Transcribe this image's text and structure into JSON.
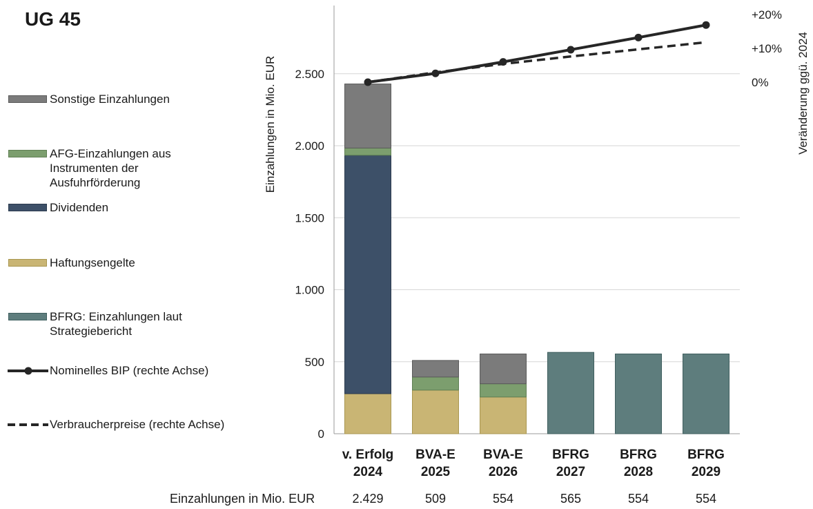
{
  "title": "UG 45",
  "legend": [
    {
      "label": "Sonstige Einzahlungen",
      "type": "rect",
      "fill": "#7b7b7b",
      "stroke": "#5a5a5a"
    },
    {
      "label": "AFG-Einzahlungen aus Instrumenten der Ausfuhrförderung",
      "type": "rect",
      "fill": "#7c9e6e",
      "stroke": "#5f7f53"
    },
    {
      "label": "Dividenden",
      "type": "rect",
      "fill": "#3d5068",
      "stroke": "#2b3a4e"
    },
    {
      "label": "Haftungsengelte",
      "type": "rect",
      "fill": "#c9b574",
      "stroke": "#a8964f"
    },
    {
      "label": "BFRG: Einzahlungen laut Strategiebericht",
      "type": "rect",
      "fill": "#5e7d7d",
      "stroke": "#3f5e5e"
    },
    {
      "label": "Nominelles BIP (rechte Achse)",
      "type": "line-marker"
    },
    {
      "label": "Verbraucherpreise (rechte Achse)",
      "type": "dashed"
    }
  ],
  "chart_data": {
    "type": "bar",
    "stacked": true,
    "categories": [
      {
        "line1": "v. Erfolg",
        "line2": "2024"
      },
      {
        "line1": "BVA-E",
        "line2": "2025"
      },
      {
        "line1": "BVA-E",
        "line2": "2026"
      },
      {
        "line1": "BFRG",
        "line2": "2027"
      },
      {
        "line1": "BFRG",
        "line2": "2028"
      },
      {
        "line1": "BFRG",
        "line2": "2029"
      }
    ],
    "series": [
      {
        "name": "Haftungsengelte",
        "color": "#c9b574",
        "values": [
          278,
          303,
          255,
          0,
          0,
          0
        ]
      },
      {
        "name": "Dividenden",
        "color": "#3d5068",
        "values": [
          1656,
          0,
          0,
          0,
          0,
          0
        ]
      },
      {
        "name": "AFG-Einzahlungen aus Instrumenten der Ausfuhrförderung",
        "color": "#7c9e6e",
        "values": [
          50,
          91,
          92,
          0,
          0,
          0
        ]
      },
      {
        "name": "Sonstige Einzahlungen",
        "color": "#7b7b7b",
        "values": [
          445,
          115,
          207,
          0,
          0,
          0
        ]
      },
      {
        "name": "BFRG: Einzahlungen laut Strategiebericht",
        "color": "#5e7d7d",
        "values": [
          0,
          0,
          0,
          565,
          554,
          554
        ]
      }
    ],
    "lines": [
      {
        "name": "Nominelles BIP (rechte Achse)",
        "style": "solid-marker",
        "values": [
          0,
          2.6,
          6.0,
          9.6,
          13.2,
          16.9
        ]
      },
      {
        "name": "Verbraucherpreise (rechte Achse)",
        "style": "dashed",
        "values": [
          0,
          2.9,
          5.4,
          7.6,
          9.7,
          11.8
        ]
      }
    ],
    "ylabel": "Einzahlungen in Mio. EUR",
    "ylim": [
      0,
      3000
    ],
    "yticks": [
      {
        "value": 0,
        "label": "0"
      },
      {
        "value": 500,
        "label": "500"
      },
      {
        "value": 1000,
        "label": "1.000"
      },
      {
        "value": 1500,
        "label": "1.500"
      },
      {
        "value": 2000,
        "label": "2.000"
      },
      {
        "value": 2500,
        "label": "2.500"
      }
    ],
    "y2label": "Veränderung ggü. 2024",
    "y2ticks": [
      {
        "value": 0,
        "label": "0%"
      },
      {
        "value": 10,
        "label": "+10%"
      },
      {
        "value": 20,
        "label": "+20%"
      }
    ],
    "grid": true,
    "legend_position": "left"
  },
  "table": {
    "label": "Einzahlungen in Mio. EUR",
    "values": [
      "2.429",
      "509",
      "554",
      "565",
      "554",
      "554"
    ]
  }
}
